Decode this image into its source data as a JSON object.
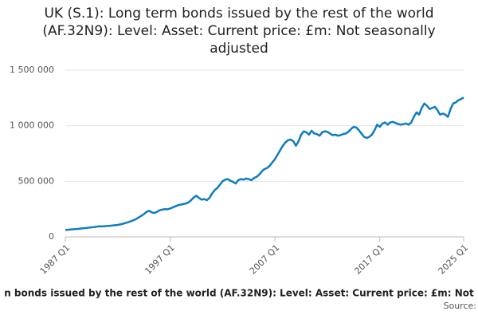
{
  "chart_data": {
    "type": "line",
    "title": "UK (S.1): Long term bonds issued by the rest of the world (AF.32N9): Level: Asset: Current price: £m: Not seasonally adjusted",
    "x_label": "n bonds issued by the rest of the world (AF.32N9): Level: Asset: Current price: £m: Not",
    "source": "Source:",
    "color": "#0f7cbf",
    "grid": true,
    "ylim": [
      0,
      1500000
    ],
    "yticks": [
      0,
      {
        "value": 500000,
        "label": "500 000"
      },
      {
        "value": 1000000,
        "label": "1 000 000"
      },
      {
        "value": 1500000,
        "label": "1 500 000"
      }
    ],
    "categories": [
      "1987 Q1",
      null,
      null,
      null,
      null,
      null,
      null,
      null,
      null,
      null,
      null,
      null,
      null,
      null,
      null,
      null,
      null,
      null,
      null,
      null,
      null,
      null,
      null,
      null,
      null,
      null,
      null,
      null,
      null,
      null,
      null,
      null,
      null,
      null,
      null,
      null,
      null,
      null,
      null,
      null,
      "1997 Q1",
      null,
      null,
      null,
      null,
      null,
      null,
      null,
      null,
      null,
      null,
      null,
      null,
      null,
      null,
      null,
      null,
      null,
      null,
      null,
      null,
      null,
      null,
      null,
      null,
      null,
      null,
      null,
      null,
      null,
      null,
      null,
      null,
      null,
      null,
      null,
      null,
      null,
      null,
      null,
      "2007 Q1",
      null,
      null,
      null,
      null,
      null,
      null,
      null,
      null,
      null,
      null,
      null,
      null,
      null,
      null,
      null,
      null,
      null,
      null,
      null,
      null,
      null,
      null,
      null,
      null,
      null,
      null,
      null,
      null,
      null,
      null,
      null,
      null,
      null,
      null,
      null,
      null,
      null,
      null,
      null,
      "2017 Q1",
      null,
      null,
      null,
      null,
      null,
      null,
      null,
      null,
      null,
      null,
      null,
      null,
      null,
      null,
      null,
      null,
      null,
      null,
      null,
      null,
      null,
      null,
      null,
      null,
      null,
      null,
      null,
      null,
      null,
      null,
      null,
      "2025 Q1"
    ],
    "values": [
      62000,
      64000,
      66000,
      68000,
      70000,
      72000,
      75000,
      78000,
      80000,
      83000,
      86000,
      88000,
      92000,
      95000,
      94000,
      96000,
      98000,
      100000,
      102000,
      105000,
      108000,
      112000,
      118000,
      125000,
      132000,
      140000,
      150000,
      160000,
      175000,
      190000,
      205000,
      225000,
      235000,
      220000,
      215000,
      225000,
      240000,
      245000,
      250000,
      248000,
      255000,
      265000,
      275000,
      285000,
      290000,
      295000,
      300000,
      310000,
      330000,
      355000,
      370000,
      350000,
      335000,
      340000,
      330000,
      350000,
      390000,
      420000,
      440000,
      470000,
      500000,
      515000,
      520000,
      505000,
      495000,
      480000,
      510000,
      520000,
      515000,
      525000,
      520000,
      510000,
      530000,
      540000,
      560000,
      590000,
      610000,
      620000,
      640000,
      670000,
      700000,
      740000,
      780000,
      820000,
      850000,
      870000,
      875000,
      860000,
      820000,
      860000,
      920000,
      950000,
      940000,
      920000,
      955000,
      930000,
      925000,
      910000,
      940000,
      950000,
      945000,
      930000,
      915000,
      920000,
      910000,
      915000,
      925000,
      930000,
      945000,
      970000,
      990000,
      985000,
      960000,
      930000,
      900000,
      890000,
      900000,
      920000,
      960000,
      1010000,
      990000,
      1020000,
      1030000,
      1010000,
      1030000,
      1035000,
      1025000,
      1015000,
      1010000,
      1015000,
      1020000,
      1010000,
      1030000,
      1080000,
      1120000,
      1100000,
      1160000,
      1200000,
      1180000,
      1150000,
      1160000,
      1170000,
      1140000,
      1100000,
      1110000,
      1100000,
      1080000,
      1150000,
      1200000,
      1210000,
      1230000,
      1240000,
      1255000
    ]
  }
}
